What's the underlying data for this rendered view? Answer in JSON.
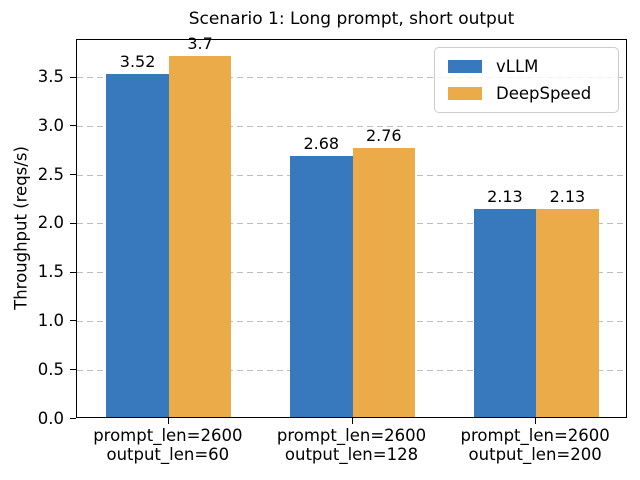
{
  "chart_data": {
    "type": "bar",
    "title": "Scenario 1: Long prompt, short output",
    "xlabel": "",
    "ylabel": "Throughput (reqs/s)",
    "ylim": [
      0,
      3.885
    ],
    "yticks": [
      "0.0",
      "0.5",
      "1.0",
      "1.5",
      "2.0",
      "2.5",
      "3.0",
      "3.5"
    ],
    "grid": "horizontal-dashed",
    "legend_position": "upper-right",
    "categories": [
      {
        "line1": "prompt_len=2600",
        "line2": "output_len=60"
      },
      {
        "line1": "prompt_len=2600",
        "line2": "output_len=128"
      },
      {
        "line1": "prompt_len=2600",
        "line2": "output_len=200"
      }
    ],
    "series": [
      {
        "name": "vLLM",
        "color": "#3878bc",
        "values": [
          3.52,
          2.68,
          2.13
        ],
        "labels": [
          "3.52",
          "2.68",
          "2.13"
        ]
      },
      {
        "name": "DeepSpeed",
        "color": "#ecab49",
        "values": [
          3.7,
          2.76,
          2.13
        ],
        "labels": [
          "3.7",
          "2.76",
          "2.13"
        ]
      }
    ]
  }
}
